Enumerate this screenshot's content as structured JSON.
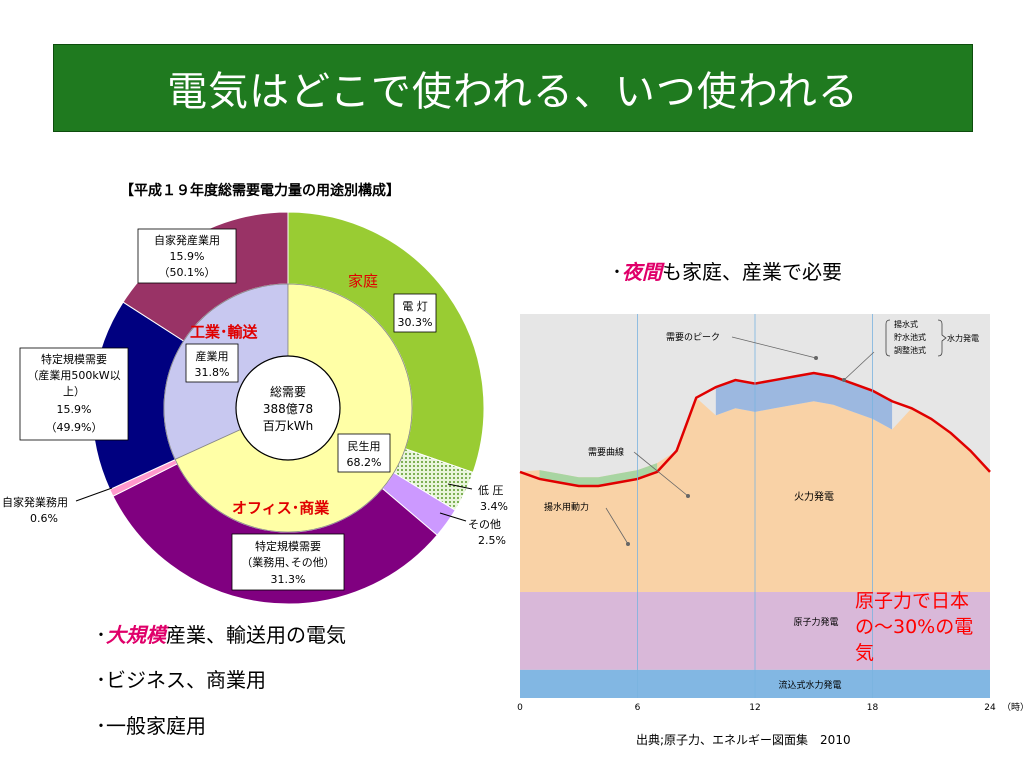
{
  "title": "電気はどこで使われる、いつ使われる",
  "donut": {
    "title": "【平成１９年度総需要電力量の用途別構成】",
    "center": [
      "総需要",
      "388億78",
      "百万kWh"
    ],
    "inner_labels": {
      "household": "家庭",
      "industry": "工業･輸送",
      "office": "オフィス･商業"
    },
    "lighting": [
      "電 灯",
      "30.3%"
    ],
    "industry_inner": [
      "産業用",
      "31.8%"
    ],
    "civil_inner": [
      "民生用",
      "68.2%"
    ],
    "low_voltage": [
      "低 圧",
      "3.4%"
    ],
    "others": [
      "その他",
      "2.5%"
    ],
    "specific_business": [
      "特定規模需要",
      "（業務用､その他）",
      "31.3%"
    ],
    "self_business": [
      "自家発業務用",
      "0.6%"
    ],
    "specific_industry": [
      "特定規模需要",
      "（産業用500kW以",
      "上）",
      "15.9%",
      "（49.9%）"
    ],
    "self_industry": [
      "自家発産業用",
      "15.9%",
      "（50.1%）"
    ]
  },
  "bullets": {
    "night_em": "夜間",
    "night_rest": "も家庭、産業で必要",
    "b1_em": "大規模",
    "b1_rest": "産業、輸送用の電気",
    "b2": "ビジネス、商業用",
    "b3": "一般家庭用",
    "marker": "･"
  },
  "load_chart": {
    "labels": {
      "peak": "需要のピーク",
      "curve": "需要曲線",
      "pumping": "揚水用動力",
      "thermal": "火力発電",
      "nuclear": "原子力発電",
      "runoff": "流込式水力発電",
      "hydro_types": [
        "揚水式",
        "貯水池式",
        "調整池式"
      ],
      "hydro": "水力発電"
    },
    "note": "原子力で日本の～30%の電気",
    "note_lines": [
      "原子力で日本",
      "の～30%の電",
      "気"
    ],
    "source": "出典;原子力、エネルギー図面集　2010"
  },
  "chart_data": [
    {
      "type": "pie",
      "title": "【平成１９年度総需要電力量の用途別構成】",
      "rings": [
        {
          "ring": "inner",
          "slices": [
            {
              "name": "産業用",
              "value": 31.8
            },
            {
              "name": "民生用",
              "value": 68.2
            }
          ]
        },
        {
          "ring": "outer",
          "slices": [
            {
              "name": "電灯",
              "value": 30.3,
              "color": "#99cc33"
            },
            {
              "name": "低圧",
              "value": 3.4,
              "color": "#c6e0b4"
            },
            {
              "name": "その他",
              "value": 2.5,
              "color": "#cc99ff"
            },
            {
              "name": "特定規模需要（業務用、その他）",
              "value": 31.3,
              "color": "#800080"
            },
            {
              "name": "自家発業務用",
              "value": 0.6,
              "color": "#ff99cc"
            },
            {
              "name": "特定規模需要（産業用500kW以上）",
              "value": 15.9,
              "color": "#000080"
            },
            {
              "name": "自家発産業用",
              "value": 15.9,
              "color": "#993366"
            }
          ]
        }
      ]
    },
    {
      "type": "area",
      "xlabel": "（時）",
      "x_ticks": [
        0,
        6,
        12,
        18,
        24
      ],
      "xlim": [
        0,
        24
      ],
      "layers": [
        "流込式水力発電",
        "原子力発電",
        "火力発電",
        "揚水式/貯水池式/調整池式 水力発電"
      ],
      "demand_curve": {
        "x": [
          0,
          1,
          2,
          3,
          4,
          5,
          6,
          7,
          8,
          9,
          10,
          11,
          12,
          13,
          14,
          15,
          16,
          17,
          18,
          19,
          20,
          21,
          22,
          23,
          24
        ],
        "y": [
          64,
          62,
          61,
          60,
          60,
          61,
          62,
          64,
          70,
          85,
          88,
          90,
          89,
          90,
          91,
          92,
          91,
          89,
          87,
          84,
          82,
          79,
          75,
          70,
          64
        ]
      },
      "colors": {
        "runoff": "#82b7e3",
        "nuclear": "#d9b8d9",
        "thermal": "#f9d2a6",
        "hydro": "#9cb8e0",
        "curve": "#e00000",
        "pumping": "#a8d5a2"
      }
    }
  ]
}
